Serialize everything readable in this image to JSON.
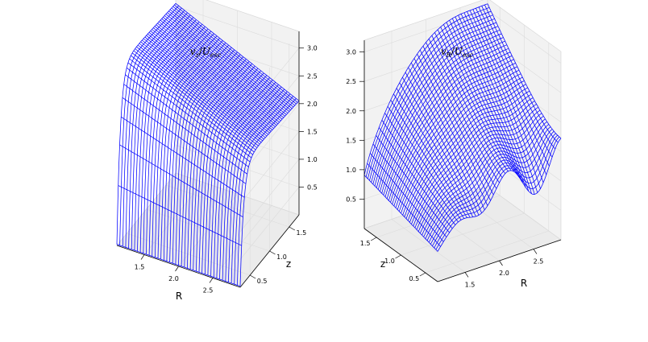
{
  "chart_data": [
    {
      "type": "surface",
      "title": "v_z/U_esc",
      "title_main": "v",
      "title_sub": "z",
      "title_den": "U",
      "title_den_sub": "esc",
      "xlabel": "R",
      "ylabel": "z",
      "zlabel": "",
      "x_ticks": [
        "1.5",
        "2.0",
        "2.5"
      ],
      "y_ticks": [
        "0.5",
        "1.0",
        "1.5"
      ],
      "z_ticks": [
        "0.5",
        "1.0",
        "1.5",
        "2.0",
        "2.5",
        "3.0"
      ],
      "xlim": [
        1.1,
        2.9
      ],
      "ylim": [
        0.25,
        1.75
      ],
      "zlim": [
        0.0,
        3.3
      ],
      "grid": true,
      "color": "#0000ff",
      "surface_shape": "steep rise to ~3.2 at small R and small z, descending plateau ~2.2 toward large R, dips near 0 along small-z edge"
    },
    {
      "type": "surface",
      "title": "v_R/U_esc",
      "title_main": "v",
      "title_sub": "R",
      "title_den": "U",
      "title_den_sub": "esc",
      "xlabel": "R",
      "ylabel": "z",
      "zlabel": "",
      "x_ticks": [
        "1.5",
        "2.0",
        "2.5"
      ],
      "y_ticks": [
        "0.5",
        "1.0",
        "1.5"
      ],
      "z_ticks": [
        "0.5",
        "1.0",
        "1.5",
        "2.0",
        "2.5",
        "3.0"
      ],
      "xlim": [
        1.1,
        2.9
      ],
      "ylim": [
        0.25,
        1.75
      ],
      "zlim": [
        0.0,
        3.2
      ],
      "grid": true,
      "color": "#0000ff",
      "surface_shape": "dome rising to ~3.1 at large z, falling to ~0.3 at small R, oscillating ridges along small-z edge"
    }
  ]
}
